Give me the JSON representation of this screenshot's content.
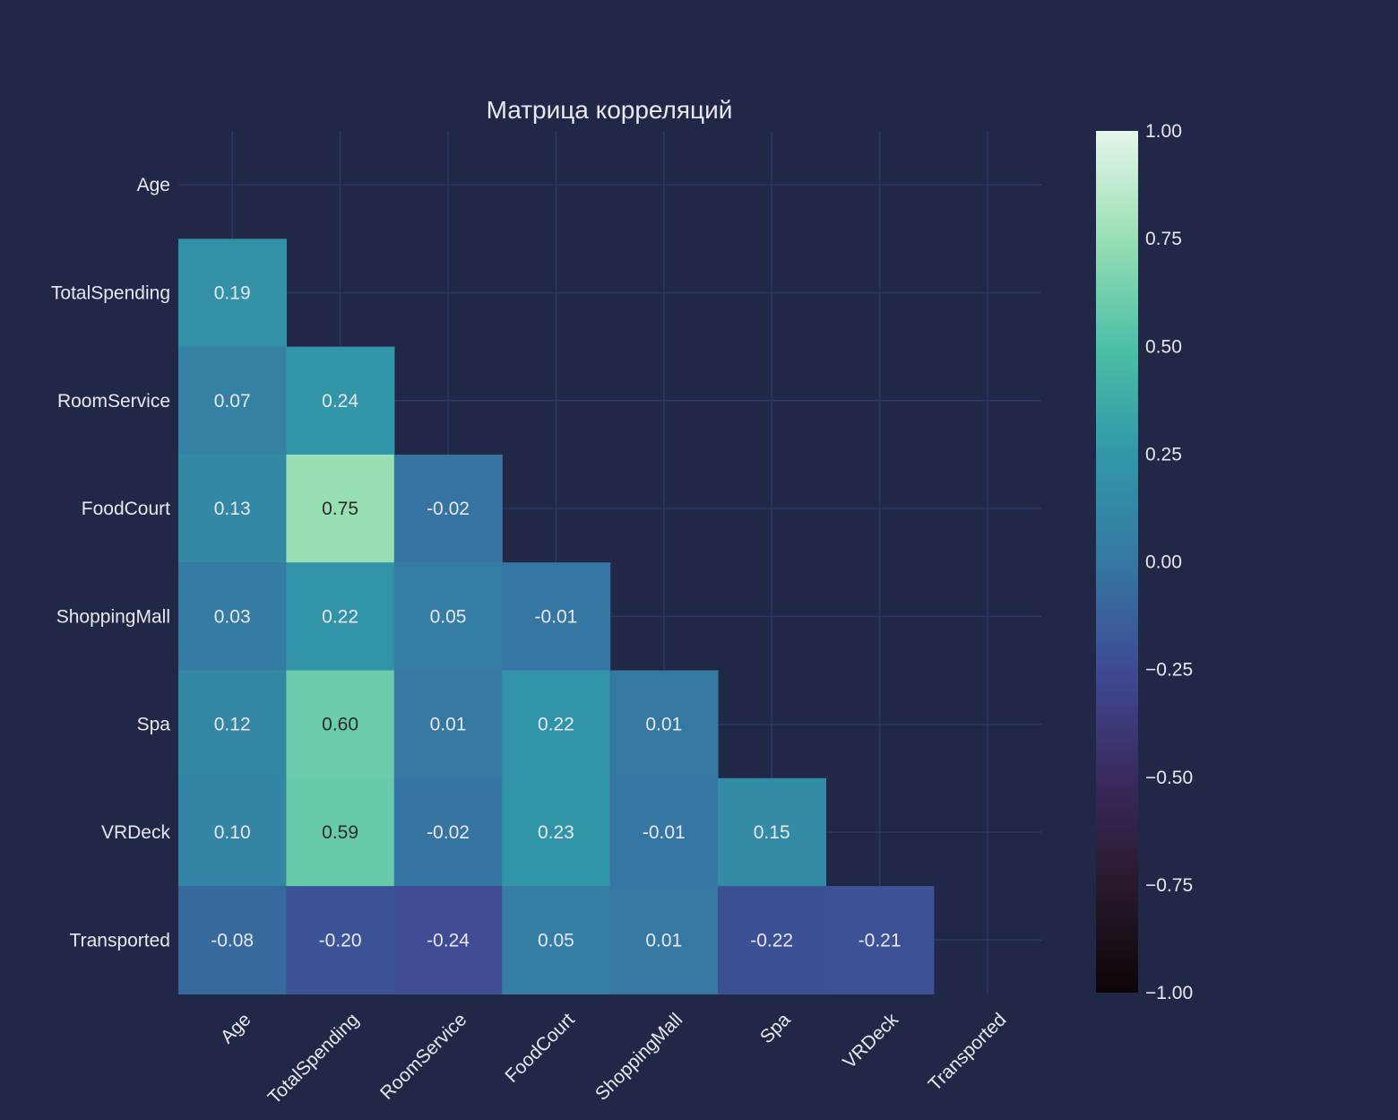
{
  "chart_data": {
    "type": "heatmap",
    "title": "Матрица корреляций",
    "xlabel": "",
    "ylabel": "",
    "x_categories": [
      "Age",
      "TotalSpending",
      "RoomService",
      "FoodCourt",
      "ShoppingMall",
      "Spa",
      "VRDeck",
      "Transported"
    ],
    "y_categories": [
      "Age",
      "TotalSpending",
      "RoomService",
      "FoodCourt",
      "ShoppingMall",
      "Spa",
      "VRDeck",
      "Transported"
    ],
    "mask": "upper-triangle-including-diagonal",
    "values": [
      [
        null,
        null,
        null,
        null,
        null,
        null,
        null,
        null
      ],
      [
        0.19,
        null,
        null,
        null,
        null,
        null,
        null,
        null
      ],
      [
        0.07,
        0.24,
        null,
        null,
        null,
        null,
        null,
        null
      ],
      [
        0.13,
        0.75,
        -0.02,
        null,
        null,
        null,
        null,
        null
      ],
      [
        0.03,
        0.22,
        0.05,
        -0.01,
        null,
        null,
        null,
        null
      ],
      [
        0.12,
        0.6,
        0.01,
        0.22,
        0.01,
        null,
        null,
        null
      ],
      [
        0.1,
        0.59,
        -0.02,
        0.23,
        -0.01,
        0.15,
        null,
        null
      ],
      [
        -0.08,
        -0.2,
        -0.24,
        0.05,
        0.01,
        -0.22,
        -0.21,
        null
      ]
    ],
    "value_format": "0.00",
    "zlim": [
      -1,
      1
    ],
    "colorbar": {
      "ticks": [
        1.0,
        0.75,
        0.5,
        0.25,
        0.0,
        -0.25,
        -0.5,
        -0.75,
        -1.0
      ],
      "tick_labels": [
        "1.00",
        "0.75",
        "0.50",
        "0.25",
        "0.00",
        "−0.25",
        "−0.50",
        "−0.75",
        "−1.00"
      ],
      "colorscale": [
        [
          -1.0,
          "#0c0508"
        ],
        [
          -0.75,
          "#271a2c"
        ],
        [
          -0.5,
          "#3a2a5e"
        ],
        [
          -0.25,
          "#3e4a94"
        ],
        [
          0.0,
          "#3578a3"
        ],
        [
          0.25,
          "#3197a8"
        ],
        [
          0.5,
          "#4cc0a6"
        ],
        [
          0.75,
          "#98dfb4"
        ],
        [
          1.0,
          "#e6f6ec"
        ]
      ]
    },
    "grid": true,
    "colors": {
      "background": "#212746",
      "grid": "#2c3764",
      "text": "#e8e8ee",
      "dark_label": "#2a2a2a"
    }
  }
}
